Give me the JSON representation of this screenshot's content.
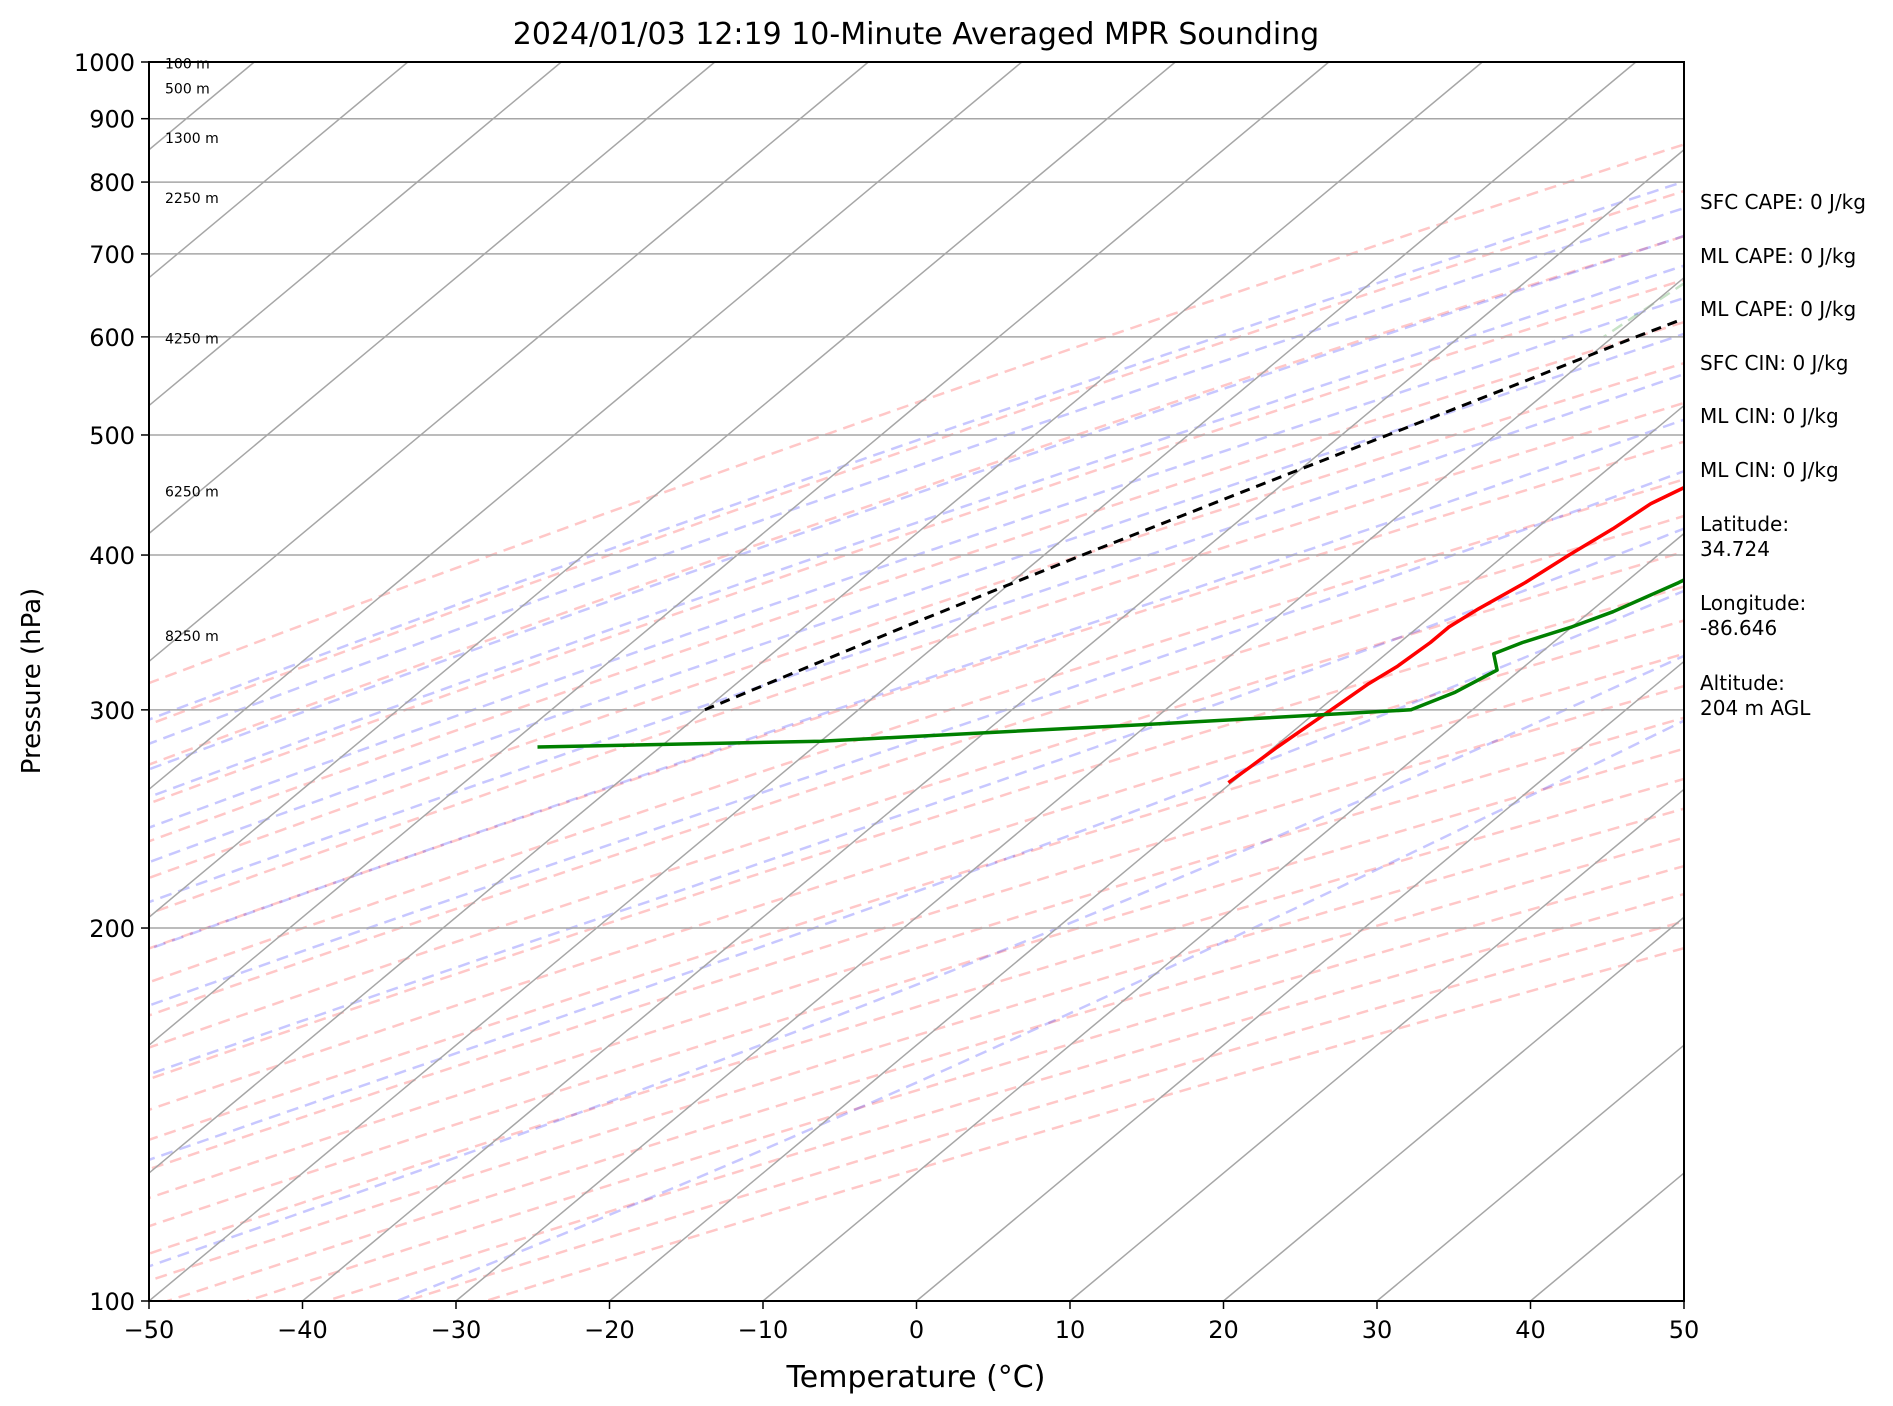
{
  "chart_data": {
    "type": "skew-t",
    "title": "2024/01/03 12:19 10-Minute Averaged MPR Sounding",
    "xlabel": "Temperature (°C)",
    "ylabel": "Pressure (hPa)",
    "xlim": [
      -50,
      50
    ],
    "ylim": [
      1000,
      100
    ],
    "y_scale": "log",
    "grid": true,
    "x_ticks": [
      "−50",
      "−40",
      "−30",
      "−20",
      "−10",
      "0",
      "10",
      "20",
      "30",
      "40",
      "50"
    ],
    "y_ticks": [
      "100",
      "200",
      "300",
      "400",
      "500",
      "600",
      "700",
      "800",
      "900",
      "1000"
    ],
    "height_labels": [
      {
        "text": "100 m",
        "p": 997
      },
      {
        "text": "500 m",
        "p": 952
      },
      {
        "text": "1300 m",
        "p": 868
      },
      {
        "text": "2250 m",
        "p": 777
      },
      {
        "text": "4250 m",
        "p": 598
      },
      {
        "text": "6250 m",
        "p": 450
      },
      {
        "text": "8250 m",
        "p": 344
      }
    ],
    "series": [
      {
        "role": "temperature",
        "color": "#ff0000",
        "points": [
          [
            1000,
            -0.5
          ],
          [
            995,
            1.0
          ],
          [
            985,
            2.5
          ],
          [
            970,
            3.5
          ],
          [
            960,
            4.2
          ],
          [
            945,
            4.3
          ],
          [
            935,
            5.0
          ],
          [
            920,
            5.8
          ],
          [
            905,
            6.2
          ],
          [
            895,
            6.6
          ],
          [
            880,
            6.8
          ],
          [
            865,
            6.6
          ],
          [
            850,
            6.5
          ],
          [
            835,
            6.2
          ],
          [
            820,
            6.0
          ],
          [
            810,
            5.9
          ],
          [
            800,
            6.2
          ],
          [
            785,
            6.3
          ],
          [
            765,
            6.0
          ],
          [
            750,
            5.5
          ],
          [
            735,
            4.8
          ],
          [
            720,
            4.0
          ],
          [
            705,
            3.4
          ],
          [
            690,
            2.9
          ],
          [
            676,
            2.2
          ],
          [
            663,
            1.4
          ],
          [
            650,
            0.2
          ],
          [
            640,
            -1.0
          ],
          [
            625,
            -3.0
          ],
          [
            610,
            -4.5
          ],
          [
            580,
            -5.5
          ],
          [
            560,
            -6.5
          ],
          [
            540,
            -8.0
          ],
          [
            500,
            -10.5
          ],
          [
            470,
            -12.5
          ],
          [
            440,
            -14.5
          ],
          [
            420,
            -15.0
          ],
          [
            400,
            -15.8
          ],
          [
            380,
            -16.5
          ],
          [
            362,
            -17.5
          ],
          [
            350,
            -18.0
          ],
          [
            340,
            -18.0
          ],
          [
            325,
            -18.3
          ],
          [
            315,
            -18.8
          ],
          [
            300,
            -19.2
          ],
          [
            290,
            -19.5
          ],
          [
            280,
            -19.8
          ],
          [
            270,
            -20.0
          ],
          [
            262,
            -20.2
          ]
        ]
      },
      {
        "role": "dewpoint",
        "color": "#008000",
        "points": [
          [
            998,
            2.5
          ],
          [
            995,
            0.7
          ],
          [
            993,
            -0.5
          ],
          [
            985,
            -0.5
          ],
          [
            975,
            -2.3
          ],
          [
            965,
            -5.0
          ],
          [
            955,
            -7.0
          ],
          [
            940,
            -9.0
          ],
          [
            925,
            -12.0
          ],
          [
            905,
            -18.0
          ],
          [
            885,
            -23.0
          ],
          [
            870,
            -27.0
          ],
          [
            855,
            -30.0
          ],
          [
            843,
            -33.0
          ],
          [
            838,
            -33.0
          ],
          [
            830,
            -30.0
          ],
          [
            815,
            -28.0
          ],
          [
            803,
            -30.5
          ],
          [
            795,
            -27.0
          ],
          [
            775,
            -23.0
          ],
          [
            760,
            -17.0
          ],
          [
            745,
            -5.0
          ],
          [
            735,
            0.0
          ],
          [
            722,
            5.0
          ],
          [
            710,
            10.0
          ],
          [
            695,
            15.0
          ],
          [
            685,
            18.0
          ],
          [
            675,
            19.0
          ],
          [
            660,
            17.0
          ],
          [
            645,
            15.5
          ],
          [
            630,
            14.0
          ],
          [
            610,
            12.5
          ],
          [
            585,
            10.0
          ],
          [
            560,
            8.5
          ],
          [
            540,
            6.2
          ],
          [
            510,
            5.0
          ],
          [
            480,
            2.5
          ],
          [
            465,
            0.5
          ],
          [
            440,
            -2.0
          ],
          [
            420,
            -4.0
          ],
          [
            400,
            -5.0
          ],
          [
            380,
            -6.5
          ],
          [
            360,
            -8.5
          ],
          [
            350,
            -10.0
          ],
          [
            340,
            -12.0
          ],
          [
            333,
            -13.0
          ],
          [
            323,
            -11.5
          ],
          [
            310,
            -12.5
          ],
          [
            300,
            -14.0
          ],
          [
            292,
            -30.0
          ],
          [
            283,
            -50.0
          ],
          [
            280,
            -68.0
          ]
        ]
      },
      {
        "role": "parcel",
        "color": "#000000",
        "style": "dashed",
        "points": [
          [
            1000,
            -0.5
          ],
          [
            990,
            -2.0
          ],
          [
            970,
            -4.2
          ],
          [
            950,
            -5.5
          ],
          [
            900,
            -8.0
          ],
          [
            850,
            -10.5
          ],
          [
            800,
            -13.5
          ],
          [
            750,
            -16.5
          ],
          [
            700,
            -20.5
          ],
          [
            650,
            -24.5
          ],
          [
            600,
            -28.5
          ],
          [
            550,
            -32.5
          ],
          [
            500,
            -37.0
          ],
          [
            450,
            -42.0
          ],
          [
            400,
            -47.5
          ],
          [
            350,
            -53.5
          ],
          [
            300,
            -60.0
          ]
        ]
      }
    ]
  },
  "stats": {
    "sfc_cape": "SFC CAPE: 0 J/kg",
    "ml_cape_1": "ML CAPE: 0 J/kg",
    "ml_cape_2": "ML CAPE: 0 J/kg",
    "sfc_cin": "SFC CIN: 0 J/kg",
    "ml_cin_1": "ML CIN: 0 J/kg",
    "ml_cin_2": "ML CIN: 0 J/kg",
    "latitude": "Latitude:\n34.724",
    "longitude": "Longitude:\n-86.646",
    "altitude": "Altitude:\n204 m AGL"
  }
}
